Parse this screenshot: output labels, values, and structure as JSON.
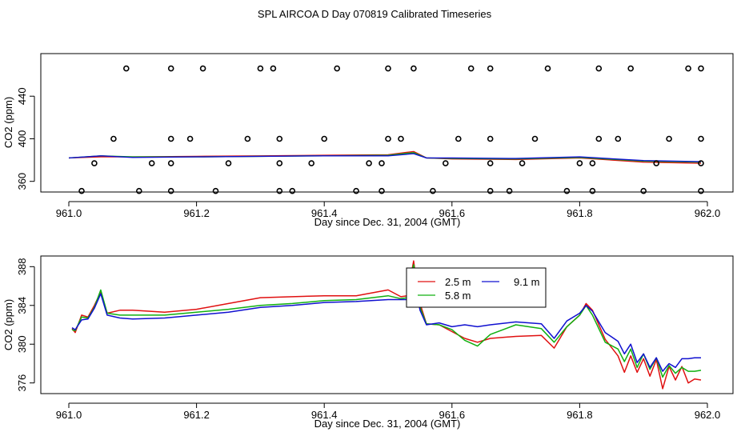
{
  "figure_title": "SPL AIRCOA D  Day 070819  Calibrated Timeseries",
  "colors": {
    "s25": "#e01010",
    "s58": "#10b010",
    "s91": "#1010d0",
    "fg": "#000000"
  },
  "chart_data": [
    {
      "type": "line",
      "title": "SPL AIRCOA D  Day 070819  Calibrated Timeseries",
      "xlabel": "Day since Dec. 31, 2004 (GMT)",
      "ylabel": "CO2 (ppm)",
      "xlim": [
        961.0,
        962.0
      ],
      "ylim": [
        350,
        480
      ],
      "xticks": [
        "961.0",
        "961.2",
        "961.4",
        "961.6",
        "961.8",
        "962.0"
      ],
      "yticks": [
        "360",
        "400",
        "440"
      ],
      "xtick_values": [
        961.0,
        961.2,
        961.4,
        961.6,
        961.8,
        962.0
      ],
      "ytick_values": [
        360,
        400,
        440
      ],
      "series": [
        {
          "name": "2.5 m",
          "x": [
            961.0,
            961.05,
            961.1,
            961.2,
            961.3,
            961.4,
            961.5,
            961.54,
            961.56,
            961.6,
            961.7,
            961.8,
            961.9,
            961.99
          ],
          "values": [
            382,
            383,
            383,
            383.5,
            384,
            384.5,
            385,
            388,
            382,
            381,
            380.5,
            382,
            378,
            377
          ]
        },
        {
          "name": "5.8 m",
          "x": [
            961.0,
            961.05,
            961.1,
            961.2,
            961.3,
            961.4,
            961.5,
            961.54,
            961.56,
            961.6,
            961.7,
            961.8,
            961.9,
            961.99
          ],
          "values": [
            382,
            384,
            383,
            383,
            383.5,
            384,
            384.5,
            387,
            382,
            381.5,
            381,
            382.5,
            379,
            378
          ]
        },
        {
          "name": "9.1 m",
          "x": [
            961.0,
            961.05,
            961.1,
            961.2,
            961.3,
            961.4,
            961.5,
            961.54,
            961.56,
            961.6,
            961.7,
            961.8,
            961.9,
            961.99
          ],
          "values": [
            382,
            384,
            382.5,
            383,
            383.5,
            384,
            384,
            386,
            382,
            382,
            381.5,
            383,
            379.5,
            378.5
          ]
        }
      ],
      "scatter_x": [
        961.09,
        961.16,
        961.21,
        961.3,
        961.32,
        961.42,
        961.5,
        961.54,
        961.63,
        961.66,
        961.75,
        961.83,
        961.88,
        961.97,
        961.99,
        961.07,
        961.16,
        961.19,
        961.28,
        961.33,
        961.4,
        961.5,
        961.52,
        961.61,
        961.66,
        961.73,
        961.83,
        961.86,
        961.94,
        961.99,
        961.04,
        961.13,
        961.16,
        961.25,
        961.33,
        961.38,
        961.47,
        961.49,
        961.59,
        961.66,
        961.71,
        961.8,
        961.82,
        961.92,
        961.99,
        961.02,
        961.11,
        961.16,
        961.23,
        961.33,
        961.35,
        961.45,
        961.49,
        961.57,
        961.66,
        961.69,
        961.78,
        961.82,
        961.9,
        961.99
      ],
      "scatter_y": [
        466,
        466,
        466,
        466,
        466,
        466,
        466,
        466,
        466,
        466,
        466,
        466,
        466,
        466,
        466,
        400,
        400,
        400,
        400,
        400,
        400,
        400,
        400,
        400,
        400,
        400,
        400,
        400,
        400,
        400,
        377,
        377,
        377,
        377,
        377,
        377,
        377,
        377,
        377,
        377,
        377,
        377,
        377,
        377,
        377,
        351,
        351,
        351,
        351,
        351,
        351,
        351,
        351,
        351,
        351,
        351,
        351,
        351,
        351,
        351
      ]
    },
    {
      "type": "line",
      "xlabel": "Day since Dec. 31, 2004 (GMT)",
      "ylabel": "CO2 (ppm)",
      "xlim": [
        961.0,
        962.0
      ],
      "ylim": [
        374.9,
        389.1
      ],
      "xticks": [
        "961.0",
        "961.2",
        "961.4",
        "961.6",
        "961.8",
        "962.0"
      ],
      "yticks": [
        "376",
        "380",
        "384",
        "388"
      ],
      "xtick_values": [
        961.0,
        961.2,
        961.4,
        961.6,
        961.8,
        962.0
      ],
      "ytick_values": [
        376,
        380,
        384,
        388
      ],
      "legend": {
        "placement": "top-center",
        "entries": [
          "2.5 m",
          "5.8 m",
          "9.1 m"
        ]
      },
      "series": [
        {
          "name": "2.5 m",
          "x": [
            961.005,
            961.01,
            961.02,
            961.03,
            961.04,
            961.05,
            961.06,
            961.08,
            961.1,
            961.15,
            961.2,
            961.25,
            961.3,
            961.35,
            961.4,
            961.45,
            961.5,
            961.52,
            961.53,
            961.54,
            961.545,
            961.55,
            961.56,
            961.58,
            961.6,
            961.62,
            961.64,
            961.66,
            961.7,
            961.74,
            961.76,
            961.78,
            961.8,
            961.81,
            961.82,
            961.84,
            961.86,
            961.87,
            961.88,
            961.89,
            961.9,
            961.91,
            961.92,
            961.93,
            961.94,
            961.95,
            961.96,
            961.97,
            961.98,
            961.99
          ],
          "values": [
            381.6,
            381.2,
            383,
            382.8,
            384,
            385.4,
            383.2,
            383.5,
            383.5,
            383.3,
            383.6,
            384.2,
            384.8,
            384.9,
            385.0,
            385.0,
            385.6,
            384.9,
            385.0,
            388.6,
            386.0,
            384.2,
            382.1,
            382.0,
            381.3,
            380.6,
            380.2,
            380.6,
            380.8,
            380.9,
            379.6,
            381.8,
            383.0,
            384.2,
            383.5,
            380.5,
            378.8,
            377.1,
            378.8,
            377.1,
            378.5,
            376.7,
            378.4,
            375.4,
            377.7,
            376.3,
            377.7,
            376.0,
            376.4,
            376.3
          ]
        },
        {
          "name": "5.8 m",
          "x": [
            961.005,
            961.01,
            961.02,
            961.03,
            961.04,
            961.05,
            961.06,
            961.08,
            961.1,
            961.15,
            961.2,
            961.25,
            961.3,
            961.35,
            961.4,
            961.45,
            961.5,
            961.52,
            961.53,
            961.54,
            961.545,
            961.55,
            961.56,
            961.58,
            961.6,
            961.62,
            961.64,
            961.66,
            961.7,
            961.74,
            961.76,
            961.78,
            961.8,
            961.81,
            961.82,
            961.84,
            961.86,
            961.87,
            961.88,
            961.89,
            961.9,
            961.91,
            961.92,
            961.93,
            961.94,
            961.95,
            961.96,
            961.97,
            961.98,
            961.99
          ],
          "values": [
            381.5,
            381.4,
            382.8,
            382.7,
            383.8,
            385.6,
            383.2,
            383.0,
            383.0,
            383.0,
            383.3,
            383.6,
            384.0,
            384.2,
            384.5,
            384.6,
            385.0,
            384.7,
            384.8,
            388.2,
            385.6,
            383.8,
            382.1,
            382.0,
            381.5,
            380.4,
            379.8,
            381.0,
            382.0,
            381.6,
            380.2,
            381.8,
            383.0,
            384.0,
            383.0,
            380.2,
            379.5,
            378.2,
            379.5,
            377.6,
            379.0,
            377.4,
            378.6,
            376.6,
            377.8,
            377.0,
            377.6,
            377.2,
            377.2,
            377.3
          ]
        },
        {
          "name": "9.1 m",
          "x": [
            961.005,
            961.01,
            961.02,
            961.03,
            961.04,
            961.05,
            961.06,
            961.08,
            961.1,
            961.15,
            961.2,
            961.25,
            961.3,
            961.35,
            961.4,
            961.45,
            961.5,
            961.52,
            961.53,
            961.54,
            961.545,
            961.55,
            961.56,
            961.58,
            961.6,
            961.62,
            961.64,
            961.66,
            961.7,
            961.74,
            961.76,
            961.78,
            961.8,
            961.81,
            961.82,
            961.84,
            961.86,
            961.87,
            961.88,
            961.89,
            961.9,
            961.91,
            961.92,
            961.93,
            961.94,
            961.95,
            961.96,
            961.97,
            961.98,
            961.99
          ],
          "values": [
            381.7,
            381.5,
            382.5,
            382.6,
            383.7,
            385.2,
            383.0,
            382.7,
            382.6,
            382.7,
            383.0,
            383.3,
            383.8,
            384.0,
            384.3,
            384.4,
            384.6,
            384.6,
            384.6,
            386.0,
            385.2,
            383.5,
            382.0,
            382.2,
            381.8,
            382.0,
            381.8,
            382.0,
            382.3,
            382.1,
            380.6,
            382.4,
            383.2,
            384.0,
            383.4,
            381.2,
            380.3,
            379.0,
            380.0,
            378.1,
            379.0,
            377.6,
            378.6,
            377.2,
            378.0,
            377.6,
            378.5,
            378.5,
            378.6,
            378.6
          ]
        }
      ]
    }
  ]
}
